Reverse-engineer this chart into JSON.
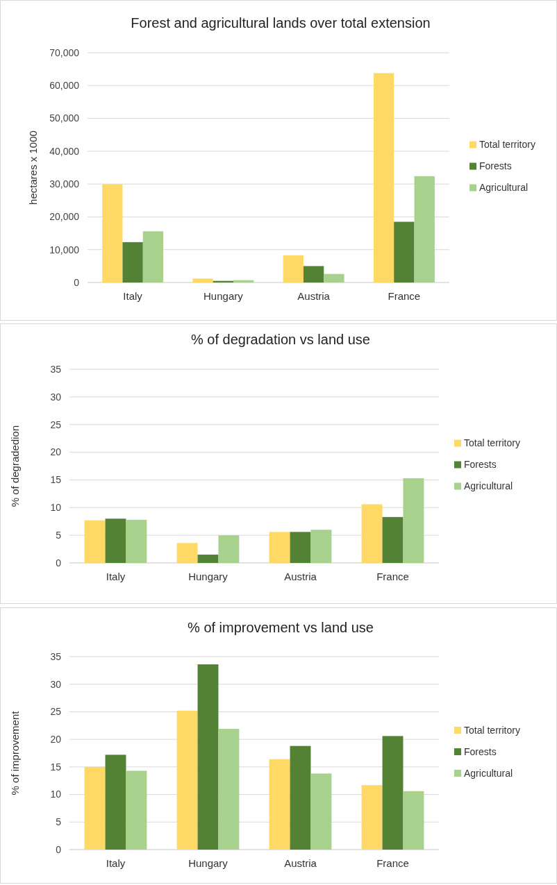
{
  "chart_data": [
    {
      "type": "bar",
      "title": "Forest and agricultural lands over total extension",
      "ylabel": "hectares x 1000",
      "categories": [
        "Italy",
        "Hungary",
        "Austria",
        "France"
      ],
      "series": [
        {
          "name": "Total territory",
          "color": "#ffd966",
          "values": [
            30000,
            1200,
            8300,
            63800
          ]
        },
        {
          "name": "Forests",
          "color": "#548235",
          "values": [
            12300,
            500,
            5000,
            18500
          ]
        },
        {
          "name": "Agricultural",
          "color": "#a9d18e",
          "values": [
            15600,
            700,
            2600,
            32400
          ]
        }
      ],
      "ylim": [
        0,
        70000
      ],
      "yticks": [
        {
          "value": 0,
          "label": "0"
        },
        {
          "value": 10000,
          "label": "10,000"
        },
        {
          "value": 20000,
          "label": "20,000"
        },
        {
          "value": 30000,
          "label": "30,000"
        },
        {
          "value": 40000,
          "label": "40,000"
        },
        {
          "value": 50000,
          "label": "50,000"
        },
        {
          "value": 60000,
          "label": "60,000"
        },
        {
          "value": 70000,
          "label": "70,000"
        }
      ],
      "grid": "y",
      "legend": "right"
    },
    {
      "type": "bar",
      "title": "% of degradation vs land use",
      "ylabel": "% of degradedion",
      "categories": [
        "Italy",
        "Hungary",
        "Austria",
        "France"
      ],
      "series": [
        {
          "name": "Total territory",
          "color": "#ffd966",
          "values": [
            7.7,
            3.6,
            5.6,
            10.6
          ]
        },
        {
          "name": "Forests",
          "color": "#548235",
          "values": [
            8.0,
            1.5,
            5.6,
            8.3
          ]
        },
        {
          "name": "Agricultural",
          "color": "#a9d18e",
          "values": [
            7.8,
            5.0,
            6.0,
            15.3
          ]
        }
      ],
      "ylim": [
        0,
        35
      ],
      "yticks": [
        0,
        5,
        10,
        15,
        20,
        25,
        30,
        35
      ],
      "grid": "y",
      "legend": "right"
    },
    {
      "type": "bar",
      "title": "% of improvement vs land use",
      "ylabel": "% of improvement",
      "categories": [
        "Italy",
        "Hungary",
        "Austria",
        "France"
      ],
      "series": [
        {
          "name": "Total territory",
          "color": "#ffd966",
          "values": [
            15.0,
            25.2,
            16.4,
            11.7
          ]
        },
        {
          "name": "Forests",
          "color": "#548235",
          "values": [
            17.2,
            33.6,
            18.8,
            20.6
          ]
        },
        {
          "name": "Agricultural",
          "color": "#a9d18e",
          "values": [
            14.3,
            21.9,
            13.8,
            10.6
          ]
        }
      ],
      "ylim": [
        0,
        35
      ],
      "yticks": [
        0,
        5,
        10,
        15,
        20,
        25,
        30,
        35
      ],
      "grid": "y",
      "legend": "right"
    }
  ]
}
